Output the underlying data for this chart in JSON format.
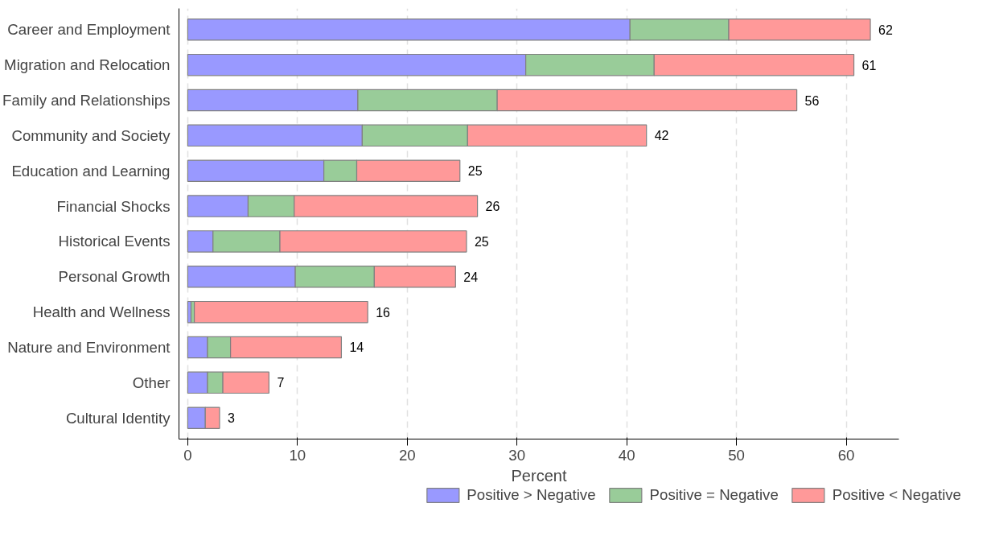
{
  "chart_data": {
    "type": "bar",
    "orientation": "horizontal",
    "stacked": true,
    "xlabel": "Percent",
    "categories": [
      "Career and Employment",
      "Migration and Relocation",
      "Family and Relationships",
      "Community and Society",
      "Education and Learning",
      "Financial Shocks",
      "Historical Events",
      "Personal Growth",
      "Health and Wellness",
      "Nature and Environment",
      "Other",
      "Cultural Identity"
    ],
    "series": [
      {
        "name": "Positive > Negative",
        "color": "#9999ff",
        "values": [
          40.3,
          30.8,
          15.5,
          15.9,
          12.4,
          5.5,
          2.3,
          9.8,
          0.3,
          1.8,
          1.8,
          1.6
        ]
      },
      {
        "name": "Positive = Negative",
        "color": "#99cc99",
        "values": [
          9.0,
          11.7,
          12.7,
          9.6,
          3.0,
          4.2,
          6.1,
          7.2,
          0.3,
          2.1,
          1.4,
          null
        ]
      },
      {
        "name": "Positive < Negative",
        "color": "#ff9999",
        "values": [
          12.9,
          18.2,
          27.3,
          16.3,
          9.4,
          16.7,
          17.0,
          7.4,
          15.8,
          10.1,
          4.2,
          1.3
        ]
      }
    ],
    "totals": [
      "62",
      "61",
      "56",
      "42",
      "25",
      "26",
      "25",
      "24",
      "16",
      "14",
      "7",
      "3"
    ],
    "xlim": [
      -0.8,
      64.8
    ],
    "xticks": [
      0,
      10,
      20,
      30,
      40,
      50,
      60
    ],
    "grid": "x",
    "legend": "bottom"
  }
}
